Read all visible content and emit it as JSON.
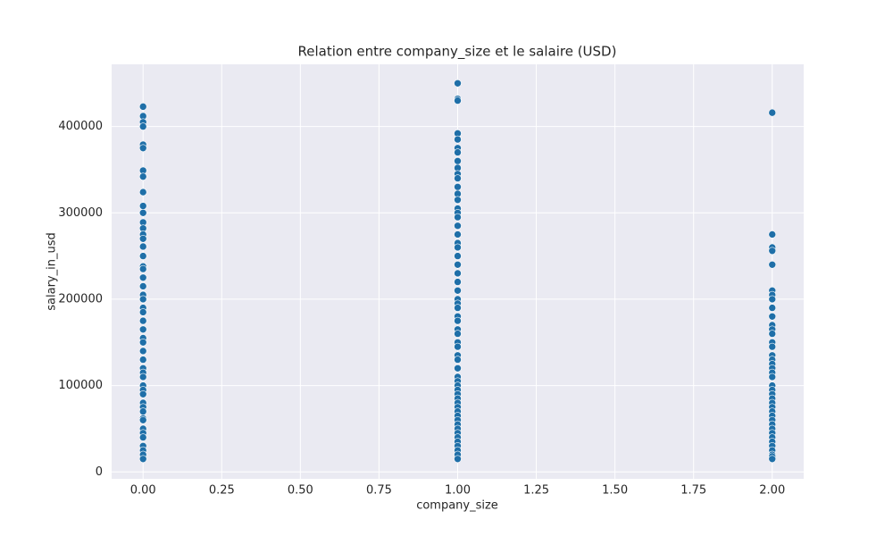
{
  "chart_data": {
    "type": "scatter",
    "title": "Relation entre company_size et le salaire (USD)",
    "x_label": "company_size",
    "y_label": "salary_in_usd",
    "xlim": [
      -0.1,
      2.1
    ],
    "xticks": [
      {
        "value": 0,
        "label": "0.00"
      },
      {
        "value": 0.25,
        "label": "0.25"
      },
      {
        "value": 0.5,
        "label": "0.50"
      },
      {
        "value": 0.75,
        "label": "0.75"
      },
      {
        "value": 1,
        "label": "1.00"
      },
      {
        "value": 1.25,
        "label": "1.25"
      },
      {
        "value": 1.5,
        "label": "1.50"
      },
      {
        "value": 1.75,
        "label": "1.75"
      },
      {
        "value": 2,
        "label": "2.00"
      }
    ],
    "ylim": [
      -8000,
      472000
    ],
    "yticks": [
      0,
      100000,
      200000,
      300000,
      400000
    ],
    "grid": true,
    "series": [
      {
        "color": "#1f6fa8",
        "x": [
          0,
          0,
          0,
          0,
          0,
          0,
          0,
          0,
          0,
          0,
          0,
          0,
          0,
          0,
          0,
          0,
          0,
          0,
          0,
          0,
          0,
          0,
          0,
          0,
          0,
          0,
          0,
          0,
          0,
          0,
          0,
          0,
          0,
          0,
          0,
          0,
          0,
          0,
          0,
          0,
          0,
          0,
          0,
          0,
          0,
          0,
          0,
          0,
          0
        ],
        "values": [
          423000,
          412000,
          405000,
          400000,
          379000,
          375000,
          349000,
          342000,
          324000,
          308000,
          300000,
          289000,
          282000,
          275000,
          270000,
          261000,
          250000,
          238000,
          235000,
          225000,
          215000,
          205000,
          200000,
          190000,
          185000,
          175000,
          165000,
          155000,
          150000,
          140000,
          130000,
          120000,
          115000,
          110000,
          100000,
          95000,
          90000,
          80000,
          75000,
          70000,
          62000,
          60000,
          50000,
          45000,
          40000,
          30000,
          25000,
          20000,
          15000
        ]
      },
      {
        "color": "#1f6fa8",
        "x": [
          1,
          1,
          1,
          1,
          1,
          1,
          1,
          1,
          1,
          1,
          1,
          1,
          1,
          1,
          1,
          1,
          1,
          1,
          1,
          1,
          1,
          1,
          1,
          1,
          1,
          1,
          1,
          1,
          1,
          1,
          1,
          1,
          1,
          1,
          1,
          1,
          1,
          1,
          1,
          1,
          1,
          1,
          1,
          1,
          1,
          1,
          1,
          1,
          1,
          1,
          1,
          1,
          1,
          1,
          1,
          1,
          1,
          1
        ],
        "values": [
          450000,
          432000,
          430000,
          392000,
          385000,
          375000,
          370000,
          360000,
          352000,
          345000,
          340000,
          330000,
          322000,
          315000,
          305000,
          300000,
          295000,
          285000,
          275000,
          265000,
          260000,
          250000,
          240000,
          230000,
          220000,
          210000,
          200000,
          195000,
          190000,
          180000,
          175000,
          165000,
          160000,
          150000,
          145000,
          135000,
          130000,
          120000,
          110000,
          105000,
          100000,
          95000,
          90000,
          85000,
          80000,
          75000,
          70000,
          65000,
          60000,
          55000,
          50000,
          45000,
          40000,
          35000,
          30000,
          25000,
          20000,
          15000
        ]
      },
      {
        "color": "#1f6fa8",
        "x": [
          2,
          2,
          2,
          2,
          2,
          2,
          2,
          2,
          2,
          2,
          2,
          2,
          2,
          2,
          2,
          2,
          2,
          2,
          2,
          2,
          2,
          2,
          2,
          2,
          2,
          2,
          2,
          2,
          2,
          2,
          2,
          2,
          2,
          2,
          2,
          2,
          2,
          2,
          2,
          2
        ],
        "values": [
          416000,
          275000,
          260000,
          256000,
          240000,
          210000,
          205000,
          200000,
          190000,
          180000,
          170000,
          165000,
          160000,
          150000,
          145000,
          135000,
          130000,
          125000,
          120000,
          115000,
          110000,
          100000,
          95000,
          90000,
          85000,
          80000,
          75000,
          70000,
          65000,
          60000,
          55000,
          50000,
          45000,
          40000,
          35000,
          30000,
          25000,
          20000,
          18000,
          15000
        ]
      }
    ]
  }
}
